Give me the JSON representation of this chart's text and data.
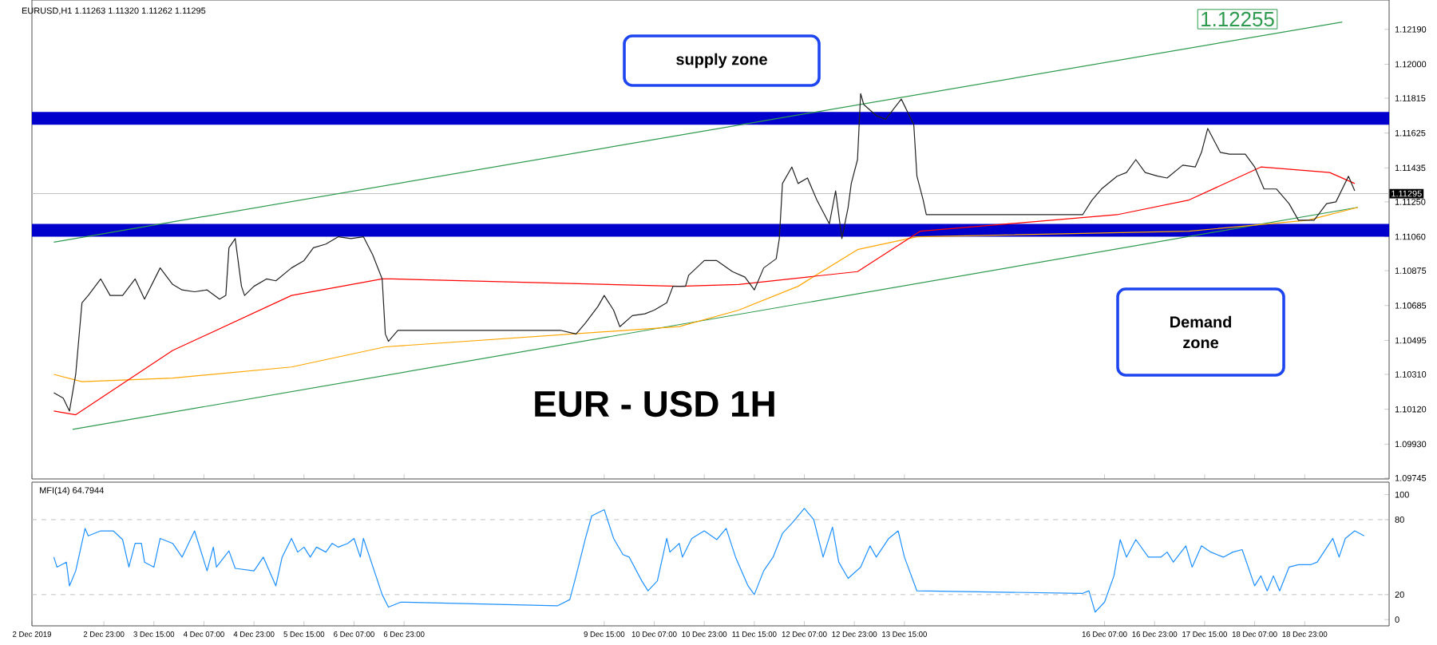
{
  "chart_data": [
    {
      "type": "line",
      "title": "EUR - USD 1H",
      "annotations": [
        "EURUSD,H1 1.11263 1.11320 1.11262 1.11295",
        "supply zone",
        "Demand zone",
        "1.12255"
      ],
      "series": [
        {
          "type": "line",
          "color": "#2e9a4e",
          "x": [
            "2019-12-02T13:00",
            "2019-12-19T16:00"
          ],
          "values": [
            1.1001,
            1.1122
          ]
        },
        {
          "type": "line",
          "color": "#2e9a4e",
          "x": [
            "2019-12-02T07:00",
            "2019-12-19T11:00"
          ],
          "values": [
            1.1103,
            1.1223
          ]
        },
        {
          "type": "line",
          "color": "#ffa500",
          "x": [
            "2019-12-02T07:00",
            "2019-12-02T16:00",
            "2019-12-03T21:00",
            "2019-12-05T11:00",
            "2019-12-06T17:00",
            "2019-12-10T15:00",
            "2019-12-11T10:00",
            "2019-12-12T05:00",
            "2019-12-13T00:00",
            "2019-12-13T19:00",
            "2019-12-17T10:00",
            "2019-12-19T00:00",
            "2019-12-19T16:00"
          ],
          "values": [
            1.1031,
            1.1027,
            1.1029,
            1.1035,
            1.1046,
            1.1057,
            1.1066,
            1.1079,
            1.1099,
            1.1106,
            1.1109,
            1.1115,
            1.1122
          ]
        },
        {
          "type": "line",
          "color": "#ff0000",
          "x": [
            "2019-12-02T07:00",
            "2019-12-02T14:00",
            "2019-12-03T21:00",
            "2019-12-05T11:00",
            "2019-12-06T16:00",
            "2019-12-06T19:00",
            "2019-12-10T15:00",
            "2019-12-11T10:00",
            "2019-12-13T00:00",
            "2019-12-13T20:00",
            "2019-12-16T11:00",
            "2019-12-17T10:00",
            "2019-12-18T09:00",
            "2019-12-19T00:00",
            "2019-12-19T07:00",
            "2019-12-19T15:00"
          ],
          "values": [
            1.1011,
            1.1009,
            1.1044,
            1.1074,
            1.1083,
            1.1083,
            1.1079,
            1.108,
            1.1087,
            1.1109,
            1.1118,
            1.1126,
            1.1144,
            1.1142,
            1.1141,
            1.1135
          ]
        },
        {
          "type": "line",
          "color": "#222222",
          "x": [
            "2019-12-02T07:00",
            "2019-12-02T10:00",
            "2019-12-02T12:00",
            "2019-12-02T14:00",
            "2019-12-02T16:00",
            "2019-12-02T18:00",
            "2019-12-02T22:00",
            "2019-12-03T01:00",
            "2019-12-03T05:00",
            "2019-12-03T09:00",
            "2019-12-03T12:00",
            "2019-12-03T17:00",
            "2019-12-03T21:00",
            "2019-12-04T00:00",
            "2019-12-04T04:00",
            "2019-12-04T08:00",
            "2019-12-04T12:00",
            "2019-12-04T14:00",
            "2019-12-04T15:00",
            "2019-12-04T17:00",
            "2019-12-04T19:00",
            "2019-12-04T20:00",
            "2019-12-04T23:00",
            "2019-12-05T03:00",
            "2019-12-05T06:00",
            "2019-12-05T11:00",
            "2019-12-05T15:00",
            "2019-12-05T18:00",
            "2019-12-05T22:00",
            "2019-12-06T02:00",
            "2019-12-06T06:00",
            "2019-12-06T10:00",
            "2019-12-06T13:00",
            "2019-12-06T16:00",
            "2019-12-06T17:00",
            "2019-12-06T18:00",
            "2019-12-06T21:00",
            "2019-12-09T01:00",
            "2019-12-09T06:00",
            "2019-12-09T09:00",
            "2019-12-09T13:00",
            "2019-12-09T15:00",
            "2019-12-09T18:00",
            "2019-12-09T20:00",
            "2019-12-10T00:00",
            "2019-12-10T04:00",
            "2019-12-10T07:00",
            "2019-12-10T11:00",
            "2019-12-10T13:00",
            "2019-12-10T17:00",
            "2019-12-10T18:00",
            "2019-12-10T23:00",
            "2019-12-11T03:00",
            "2019-12-11T08:00",
            "2019-12-11T12:00",
            "2019-12-11T15:00",
            "2019-12-11T18:00",
            "2019-12-11T22:00",
            "2019-12-11T23:00",
            "2019-12-12T00:00",
            "2019-12-12T03:00",
            "2019-12-12T05:00",
            "2019-12-12T08:00",
            "2019-12-12T11:00",
            "2019-12-12T15:00",
            "2019-12-12T17:00",
            "2019-12-12T19:00",
            "2019-12-12T21:00",
            "2019-12-12T22:00",
            "2019-12-13T00:00",
            "2019-12-13T01:00",
            "2019-12-13T02:00",
            "2019-12-13T06:00",
            "2019-12-13T09:00",
            "2019-12-13T14:00",
            "2019-12-13T18:00",
            "2019-12-13T19:00",
            "2019-12-13T21:00",
            "2019-12-13T22:00",
            "2019-12-16T00:00",
            "2019-12-16T03:00",
            "2019-12-16T06:00",
            "2019-12-16T11:00",
            "2019-12-16T14:00",
            "2019-12-16T17:00",
            "2019-12-16T20:00",
            "2019-12-17T00:00",
            "2019-12-17T03:00",
            "2019-12-17T08:00",
            "2019-12-17T12:00",
            "2019-12-17T14:00",
            "2019-12-17T16:00",
            "2019-12-17T20:00",
            "2019-12-17T23:00",
            "2019-12-18T04:00",
            "2019-12-18T07:00",
            "2019-12-18T10:00",
            "2019-12-18T14:00",
            "2019-12-18T18:00",
            "2019-12-18T21:00",
            "2019-12-19T02:00",
            "2019-12-19T06:00",
            "2019-12-19T09:00",
            "2019-12-19T13:00",
            "2019-12-19T15:00"
          ],
          "values": [
            1.1021,
            1.1018,
            1.1011,
            1.1031,
            1.107,
            1.1074,
            1.1083,
            1.1074,
            1.1074,
            1.1083,
            1.1072,
            1.1089,
            1.108,
            1.1077,
            1.1076,
            1.1077,
            1.1072,
            1.1074,
            1.11,
            1.1105,
            1.1079,
            1.1074,
            1.1079,
            1.1083,
            1.1082,
            1.1089,
            1.1093,
            1.11,
            1.1102,
            1.1106,
            1.1105,
            1.1106,
            1.1096,
            1.1083,
            1.1053,
            1.1049,
            1.1055,
            1.1055,
            1.1053,
            1.1059,
            1.1068,
            1.1074,
            1.1066,
            1.1057,
            1.1063,
            1.1064,
            1.1066,
            1.107,
            1.1079,
            1.1079,
            1.1085,
            1.1093,
            1.1093,
            1.1087,
            1.1084,
            1.1077,
            1.1089,
            1.1094,
            1.1105,
            1.1135,
            1.1144,
            1.1135,
            1.1138,
            1.1126,
            1.1113,
            1.1131,
            1.1105,
            1.1122,
            1.1135,
            1.1148,
            1.1184,
            1.1178,
            1.1172,
            1.117,
            1.1181,
            1.1167,
            1.1139,
            1.1126,
            1.1118,
            1.1118,
            1.1126,
            1.1132,
            1.1139,
            1.1141,
            1.1148,
            1.1141,
            1.1139,
            1.1138,
            1.1145,
            1.1144,
            1.1152,
            1.1165,
            1.1152,
            1.1151,
            1.1151,
            1.1144,
            1.1132,
            1.1132,
            1.1124,
            1.1115,
            1.1115,
            1.1124,
            1.1125,
            1.1139,
            1.1131
          ]
        }
      ],
      "xlim": [
        "2019-12-02T00:00",
        "2019-12-20T02:00"
      ],
      "xticks": [
        {
          "value": "2019-12-02T00:00",
          "label": null
        },
        {
          "value": "2019-12-02T23:00",
          "label": null
        },
        {
          "value": "2019-12-03T15:00",
          "label": null
        },
        {
          "value": "2019-12-04T07:00",
          "label": null
        },
        {
          "value": "2019-12-04T23:00",
          "label": null
        },
        {
          "value": "2019-12-05T15:00",
          "label": null
        },
        {
          "value": "2019-12-06T07:00",
          "label": null
        },
        {
          "value": "2019-12-06T23:00",
          "label": null
        },
        {
          "value": "2019-12-09T15:00",
          "label": null
        },
        {
          "value": "2019-12-10T07:00",
          "label": null
        },
        {
          "value": "2019-12-10T23:00",
          "label": null
        },
        {
          "value": "2019-12-11T15:00",
          "label": null
        },
        {
          "value": "2019-12-12T07:00",
          "label": null
        },
        {
          "value": "2019-12-12T23:00",
          "label": null
        },
        {
          "value": "2019-12-13T15:00",
          "label": null
        },
        {
          "value": "2019-12-16T07:00",
          "label": null
        },
        {
          "value": "2019-12-16T23:00",
          "label": null
        },
        {
          "value": "2019-12-17T15:00",
          "label": null
        },
        {
          "value": "2019-12-18T07:00",
          "label": null
        },
        {
          "value": "2019-12-18T23:00",
          "label": null
        }
      ],
      "ylim": [
        1.0974,
        1.1235
      ],
      "yticks": [
        {
          "value": 1.0993,
          "label": "1.09930"
        },
        {
          "value": 1.1012,
          "label": "1.10120"
        },
        {
          "value": 1.1031,
          "label": "1.10310"
        },
        {
          "value": 1.10495,
          "label": "1.10495"
        },
        {
          "value": 1.10685,
          "label": "1.10685"
        },
        {
          "value": 1.10875,
          "label": "1.10875"
        },
        {
          "value": 1.1106,
          "label": "1.11060"
        },
        {
          "value": 1.1125,
          "label": "1.11250"
        },
        {
          "value": 1.11435,
          "label": "1.11435"
        },
        {
          "value": 1.11625,
          "label": "1.11625"
        },
        {
          "value": 1.11815,
          "label": "1.11815"
        },
        {
          "value": 1.12,
          "label": "1.12000"
        },
        {
          "value": 1.1219,
          "label": "1.12190"
        },
        {
          "value": 1.09745,
          "label": "1.09745"
        }
      ],
      "tick_labels": "y",
      "ref_lines": [
        {
          "axis": "y",
          "value": 1.11295,
          "label": "1.11295",
          "color": "#c0c0c0"
        }
      ],
      "bands": [
        {
          "axis": "y",
          "from": 1.1167,
          "to": 1.1174,
          "color": "#0000cc"
        },
        {
          "axis": "y",
          "from": 1.1106,
          "to": 1.1113,
          "color": "#0000cc"
        }
      ],
      "marker": "none",
      "line_style": "solid"
    },
    {
      "type": "line",
      "title": "MFI(14) 64.7944",
      "series": [
        {
          "color": "#1e90ff",
          "x": [
            "2019-12-02T07:00",
            "2019-12-02T08:00",
            "2019-12-02T11:00",
            "2019-12-02T12:00",
            "2019-12-02T14:00",
            "2019-12-02T17:00",
            "2019-12-02T18:00",
            "2019-12-02T22:00",
            "2019-12-03T02:00",
            "2019-12-03T05:00",
            "2019-12-03T07:00",
            "2019-12-03T09:00",
            "2019-12-03T11:00",
            "2019-12-03T12:00",
            "2019-12-03T15:00",
            "2019-12-03T17:00",
            "2019-12-03T21:00",
            "2019-12-04T00:00",
            "2019-12-04T04:00",
            "2019-12-04T08:00",
            "2019-12-04T10:00",
            "2019-12-04T11:00",
            "2019-12-04T15:00",
            "2019-12-04T17:00",
            "2019-12-04T23:00",
            "2019-12-05T02:00",
            "2019-12-05T06:00",
            "2019-12-05T08:00",
            "2019-12-05T11:00",
            "2019-12-05T13:00",
            "2019-12-05T15:00",
            "2019-12-05T17:00",
            "2019-12-05T19:00",
            "2019-12-05T22:00",
            "2019-12-06T00:00",
            "2019-12-06T02:00",
            "2019-12-06T05:00",
            "2019-12-06T07:00",
            "2019-12-06T09:00",
            "2019-12-06T10:00",
            "2019-12-06T12:00",
            "2019-12-06T16:00",
            "2019-12-06T18:00",
            "2019-12-06T22:00",
            "2019-12-09T00:00",
            "2019-12-09T04:00",
            "2019-12-09T06:00",
            "2019-12-09T09:00",
            "2019-12-09T11:00",
            "2019-12-09T15:00",
            "2019-12-09T18:00",
            "2019-12-09T21:00",
            "2019-12-09T23:00",
            "2019-12-10T03:00",
            "2019-12-10T05:00",
            "2019-12-10T08:00",
            "2019-12-10T11:00",
            "2019-12-10T12:00",
            "2019-12-10T15:00",
            "2019-12-10T16:00",
            "2019-12-10T19:00",
            "2019-12-10T23:00",
            "2019-12-11T03:00",
            "2019-12-11T06:00",
            "2019-12-11T09:00",
            "2019-12-11T13:00",
            "2019-12-11T15:00",
            "2019-12-11T18:00",
            "2019-12-11T21:00",
            "2019-12-12T00:00",
            "2019-12-12T03:00",
            "2019-12-12T07:00",
            "2019-12-12T10:00",
            "2019-12-12T13:00",
            "2019-12-12T16:00",
            "2019-12-12T18:00",
            "2019-12-12T21:00",
            "2019-12-13T01:00",
            "2019-12-13T04:00",
            "2019-12-13T06:00",
            "2019-12-13T10:00",
            "2019-12-13T13:00",
            "2019-12-13T15:00",
            "2019-12-13T19:00",
            "2019-12-16T00:00",
            "2019-12-16T02:00",
            "2019-12-16T04:00",
            "2019-12-16T07:00",
            "2019-12-16T10:00",
            "2019-12-16T12:00",
            "2019-12-16T14:00",
            "2019-12-16T17:00",
            "2019-12-16T21:00",
            "2019-12-17T01:00",
            "2019-12-17T03:00",
            "2019-12-17T05:00",
            "2019-12-17T09:00",
            "2019-12-17T11:00",
            "2019-12-17T14:00",
            "2019-12-17T17:00",
            "2019-12-17T21:00",
            "2019-12-18T00:00",
            "2019-12-18T03:00",
            "2019-12-18T07:00",
            "2019-12-18T09:00",
            "2019-12-18T11:00",
            "2019-12-18T13:00",
            "2019-12-18T15:00",
            "2019-12-18T18:00",
            "2019-12-18T21:00",
            "2019-12-19T01:00",
            "2019-12-19T03:00",
            "2019-12-19T08:00",
            "2019-12-19T10:00",
            "2019-12-19T12:00",
            "2019-12-19T15:00",
            "2019-12-19T18:00"
          ],
          "values": [
            50,
            42,
            46,
            27,
            39,
            73,
            67,
            71,
            71,
            64,
            42,
            61,
            61,
            46,
            42,
            65,
            61,
            50,
            71,
            39,
            58,
            42,
            55,
            41,
            39,
            50,
            27,
            50,
            65,
            54,
            58,
            50,
            58,
            54,
            61,
            58,
            61,
            65,
            50,
            65,
            50,
            20,
            10,
            14,
            11,
            16,
            35,
            65,
            83,
            88,
            65,
            52,
            50,
            31,
            23,
            31,
            65,
            54,
            61,
            50,
            65,
            71,
            64,
            73,
            50,
            27,
            20,
            39,
            50,
            69,
            77,
            89,
            80,
            50,
            74,
            46,
            33,
            42,
            59,
            50,
            65,
            71,
            50,
            23,
            21,
            23,
            6,
            14,
            35,
            64,
            50,
            64,
            50,
            50,
            54,
            46,
            59,
            42,
            59,
            54,
            50,
            54,
            56,
            27,
            35,
            23,
            35,
            23,
            42,
            44,
            44,
            46,
            65,
            50,
            65,
            71,
            67
          ]
        }
      ],
      "xlim": [
        "2019-12-02T00:00",
        "2019-12-20T02:00"
      ],
      "xticks": [
        {
          "value": "2019-12-02T00:00",
          "label": "2 Dec 2019"
        },
        {
          "value": "2019-12-02T23:00",
          "label": "2 Dec 23:00"
        },
        {
          "value": "2019-12-03T15:00",
          "label": "3 Dec 15:00"
        },
        {
          "value": "2019-12-04T07:00",
          "label": "4 Dec 07:00"
        },
        {
          "value": "2019-12-04T23:00",
          "label": "4 Dec 23:00"
        },
        {
          "value": "2019-12-05T15:00",
          "label": "5 Dec 15:00"
        },
        {
          "value": "2019-12-06T07:00",
          "label": "6 Dec 07:00"
        },
        {
          "value": "2019-12-06T23:00",
          "label": "6 Dec 23:00"
        },
        {
          "value": "2019-12-09T15:00",
          "label": "9 Dec 15:00"
        },
        {
          "value": "2019-12-10T07:00",
          "label": "10 Dec 07:00"
        },
        {
          "value": "2019-12-10T23:00",
          "label": "10 Dec 23:00"
        },
        {
          "value": "2019-12-11T15:00",
          "label": "11 Dec 15:00"
        },
        {
          "value": "2019-12-12T07:00",
          "label": "12 Dec 07:00"
        },
        {
          "value": "2019-12-12T23:00",
          "label": "12 Dec 23:00"
        },
        {
          "value": "2019-12-13T15:00",
          "label": "13 Dec 15:00"
        },
        {
          "value": "2019-12-16T07:00",
          "label": "16 Dec 07:00"
        },
        {
          "value": "2019-12-16T23:00",
          "label": "16 Dec 23:00"
        },
        {
          "value": "2019-12-17T15:00",
          "label": "17 Dec 15:00"
        },
        {
          "value": "2019-12-18T07:00",
          "label": "18 Dec 07:00"
        },
        {
          "value": "2019-12-18T23:00",
          "label": "18 Dec 23:00"
        }
      ],
      "ylim": [
        -5,
        110
      ],
      "yticks": [
        0,
        20,
        80,
        100
      ],
      "ref_lines": [
        {
          "axis": "y",
          "value": 20,
          "color": "#c0c0c0",
          "line_style": "dashed"
        },
        {
          "axis": "y",
          "value": 80,
          "color": "#c0c0c0",
          "line_style": "dashed"
        }
      ],
      "marker": "none",
      "line_style": "solid"
    }
  ]
}
